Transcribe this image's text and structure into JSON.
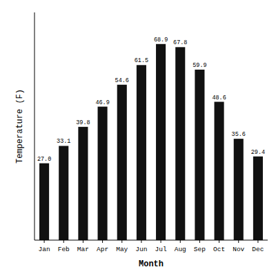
{
  "chart_data": {
    "type": "bar",
    "categories": [
      "Jan",
      "Feb",
      "Mar",
      "Apr",
      "May",
      "Jun",
      "Jul",
      "Aug",
      "Sep",
      "Oct",
      "Nov",
      "Dec"
    ],
    "values": [
      27.0,
      33.1,
      39.8,
      46.9,
      54.6,
      61.5,
      68.9,
      67.8,
      59.9,
      48.6,
      35.6,
      29.4
    ],
    "value_labels": [
      "27.0",
      "33.1",
      "39.8",
      "46.9",
      "54.6",
      "61.5",
      "68.9",
      "67.8",
      "59.9",
      "48.6",
      "35.6",
      "29.4"
    ],
    "data_labels": true,
    "color": "#111111",
    "x_label": "Month",
    "y_label": "Temperature (F)",
    "ylim": [
      0,
      80
    ],
    "tick_labels": "x",
    "grid": false
  }
}
